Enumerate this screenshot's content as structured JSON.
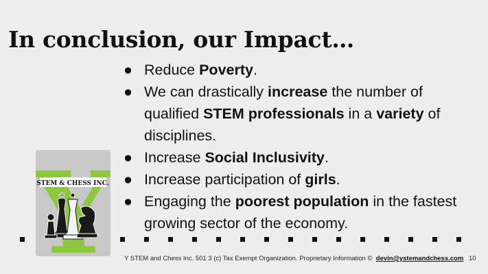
{
  "slide": {
    "title": "In conclusion, our Impact…",
    "bullets": [
      {
        "marker": "●",
        "parts": [
          {
            "text": "Reduce ",
            "bold": false
          },
          {
            "text": "Poverty",
            "bold": true
          },
          {
            "text": ".",
            "bold": false
          }
        ]
      },
      {
        "marker": "●",
        "parts": [
          {
            "text": "We can drastically ",
            "bold": false
          },
          {
            "text": "increase",
            "bold": true
          },
          {
            "text": " the number of qualified ",
            "bold": false
          },
          {
            "text": "STEM professionals",
            "bold": true
          },
          {
            "text": " in a ",
            "bold": false
          },
          {
            "text": "variety",
            "bold": true
          },
          {
            "text": " of disciplines.",
            "bold": false
          }
        ]
      },
      {
        "marker": "●",
        "parts": [
          {
            "text": "Increase ",
            "bold": false
          },
          {
            "text": "Social Inclusivity",
            "bold": true
          },
          {
            "text": ".",
            "bold": false
          }
        ]
      },
      {
        "marker": "●",
        "parts": [
          {
            "text": "Increase participation of ",
            "bold": false
          },
          {
            "text": "girls",
            "bold": true
          },
          {
            "text": ".",
            "bold": false
          }
        ]
      },
      {
        "marker": "●",
        "parts": [
          {
            "text": "Engaging the ",
            "bold": false
          },
          {
            "text": "poorest population",
            "bold": true
          },
          {
            "text": " in the fastest growing sector of the economy.",
            "bold": false
          }
        ]
      }
    ]
  },
  "logo": {
    "letter": "Y",
    "banner": "STEM & CHESS INC.",
    "icon": "chess-pieces-icon",
    "letter_color": "#8dc63f"
  },
  "footer": {
    "text": "Y STEM and Chess Inc. 501 3 (c) Tax Exempt Organization. Proprietary Information ©",
    "email": "devin@ystemandchess.com",
    "page_number": "10"
  }
}
